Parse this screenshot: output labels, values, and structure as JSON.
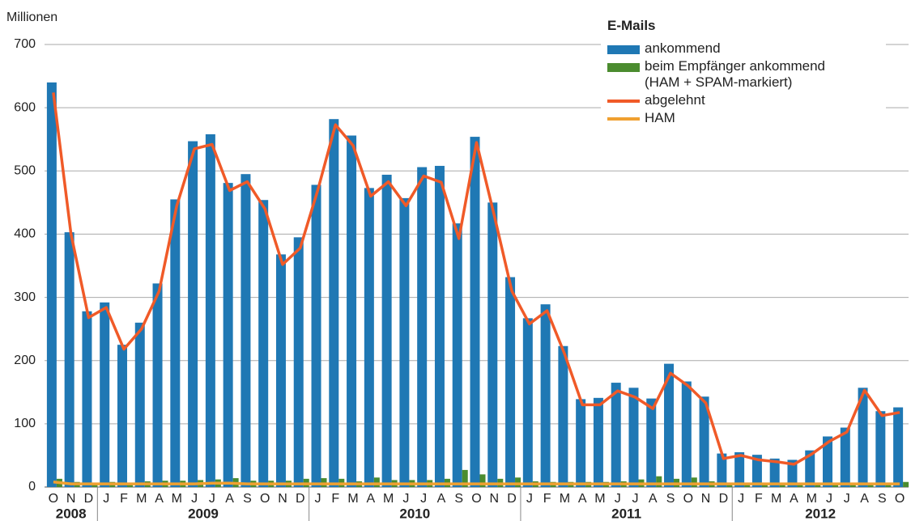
{
  "chart_data": {
    "type": "bar",
    "y_label": "Millionen",
    "legend_title": "E-Mails",
    "categories": [
      "O",
      "N",
      "D",
      "J",
      "F",
      "M",
      "A",
      "M",
      "J",
      "J",
      "A",
      "S",
      "O",
      "N",
      "D",
      "J",
      "F",
      "M",
      "A",
      "M",
      "J",
      "J",
      "A",
      "S",
      "O",
      "N",
      "D",
      "J",
      "F",
      "M",
      "A",
      "M",
      "J",
      "J",
      "A",
      "S",
      "O",
      "N",
      "D",
      "J",
      "F",
      "M",
      "A",
      "M",
      "J",
      "J",
      "A",
      "S",
      "O"
    ],
    "years": [
      "2008",
      "2009",
      "2010",
      "2011",
      "2012"
    ],
    "ylim": [
      0,
      700
    ],
    "yticks": [
      0,
      100,
      200,
      300,
      400,
      500,
      600,
      700
    ],
    "grid": true,
    "series": [
      {
        "name": "ankommend",
        "kind": "bar",
        "color": "#1f78b4",
        "values": [
          640,
          403,
          278,
          292,
          225,
          260,
          322,
          455,
          547,
          558,
          481,
          495,
          454,
          368,
          395,
          478,
          582,
          556,
          473,
          494,
          457,
          506,
          508,
          417,
          554,
          450,
          332,
          267,
          289,
          223,
          139,
          141,
          165,
          157,
          140,
          195,
          167,
          143,
          53,
          55,
          51,
          45,
          43,
          58,
          80,
          94,
          157,
          120,
          126
        ]
      },
      {
        "name": "beim Empfänger ankommend\n(HAM + SPAM-markiert)",
        "kind": "bar",
        "color": "#4b8c2f",
        "values": [
          13,
          8,
          7,
          8,
          7,
          9,
          10,
          10,
          11,
          12,
          14,
          10,
          10,
          10,
          13,
          14,
          13,
          9,
          15,
          11,
          11,
          11,
          13,
          27,
          20,
          13,
          15,
          9,
          8,
          8,
          8,
          8,
          9,
          12,
          17,
          13,
          15,
          9,
          7,
          5,
          5,
          5,
          5,
          5,
          5,
          5,
          5,
          5,
          8
        ]
      },
      {
        "name": "abgelehnt",
        "kind": "line",
        "color": "#f05a28",
        "values": [
          624,
          400,
          268,
          284,
          218,
          250,
          310,
          445,
          535,
          542,
          469,
          483,
          440,
          352,
          378,
          470,
          573,
          540,
          460,
          483,
          445,
          492,
          482,
          393,
          545,
          430,
          310,
          258,
          279,
          210,
          130,
          130,
          152,
          142,
          124,
          180,
          160,
          133,
          45,
          50,
          43,
          40,
          36,
          52,
          72,
          87,
          153,
          113,
          118
        ]
      },
      {
        "name": "HAM",
        "kind": "line",
        "color": "#f0a030",
        "values": [
          8,
          5,
          5,
          5,
          5,
          5,
          5,
          5,
          5,
          6,
          6,
          5,
          5,
          5,
          5,
          5,
          5,
          5,
          5,
          5,
          5,
          5,
          5,
          5,
          5,
          5,
          5,
          5,
          5,
          5,
          5,
          5,
          5,
          5,
          5,
          5,
          5,
          5,
          5,
          5,
          5,
          5,
          5,
          5,
          5,
          5,
          5,
          5,
          5
        ]
      }
    ]
  }
}
